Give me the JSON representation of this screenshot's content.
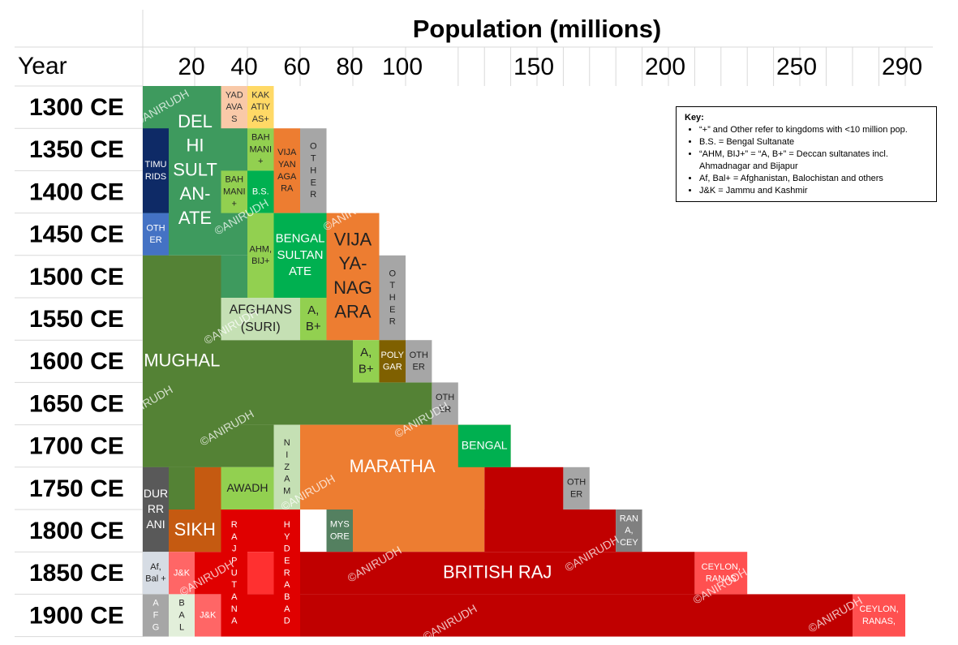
{
  "chart_data": {
    "type": "stacked-bar",
    "title": "Population (millions)",
    "ylabel": "Year",
    "x_ticks": [
      20,
      40,
      60,
      80,
      100,
      150,
      200,
      250,
      290
    ],
    "years": [
      "1300 CE",
      "1350 CE",
      "1400 CE",
      "1450 CE",
      "1500 CE",
      "1550 CE",
      "1600 CE",
      "1650 CE",
      "1700 CE",
      "1750 CE",
      "1800 CE",
      "1850 CE",
      "1900 CE"
    ],
    "blocks": [
      {
        "label": "DEL HI SULT AN- ATE",
        "start_year": "1300 CE",
        "end_year": "1450 CE",
        "from": 0,
        "to": 40,
        "color": "#3e9a5e",
        "text_color": "#ffffff",
        "font": 22,
        "bold": true,
        "lines": [
          "DEL",
          "HI",
          "SULT",
          "AN-",
          "ATE"
        ]
      },
      {
        "label": "TIMU RIDS",
        "start_year": "1350 CE",
        "end_year": "1400 CE",
        "from": 0,
        "to": 10,
        "color": "#0e2a66",
        "text_color": "#ffffff",
        "font": 11,
        "lines": [
          "TIMU",
          "RIDS"
        ]
      },
      {
        "label": "OTH ER",
        "start_year": "1450 CE",
        "end_year": "1450 CE",
        "from": 0,
        "to": 10,
        "color": "#4472c4",
        "text_color": "#ffffff",
        "font": 11,
        "lines": [
          "OTH",
          "ER"
        ]
      },
      {
        "label": "YAD AVA S",
        "start_year": "1300 CE",
        "end_year": "1300 CE",
        "from": 30,
        "to": 40,
        "color": "#f9c9a8",
        "text_color": "#333333",
        "font": 11,
        "lines": [
          "YAD",
          "AVA",
          "S"
        ]
      },
      {
        "label": "KAK ATIY AS+",
        "start_year": "1300 CE",
        "end_year": "1300 CE",
        "from": 40,
        "to": 50,
        "color": "#ffd966",
        "text_color": "#333333",
        "font": 11,
        "lines": [
          "KAK",
          "ATIY",
          "AS+"
        ]
      },
      {
        "label": "BAH MANI +",
        "start_year": "1350 CE",
        "end_year": "1350 CE",
        "from": 40,
        "to": 50,
        "color": "#92d050",
        "text_color": "#222222",
        "font": 11,
        "lines": [
          "BAH",
          "MANI",
          "+"
        ]
      },
      {
        "label": "BAH MANI +",
        "start_year": "1400 CE",
        "end_year": "1400 CE",
        "from": 30,
        "to": 40,
        "color": "#92d050",
        "text_color": "#222222",
        "font": 11,
        "lines": [
          "BAH",
          "MANI",
          "+"
        ]
      },
      {
        "label": "B.S.",
        "start_year": "1400 CE",
        "end_year": "1400 CE",
        "from": 40,
        "to": 50,
        "color": "#00b050",
        "text_color": "#ffffff",
        "font": 11,
        "lines": [
          "B.S."
        ]
      },
      {
        "label": "VIJA YAN AGA RA",
        "start_year": "1350 CE",
        "end_year": "1400 CE",
        "from": 50,
        "to": 60,
        "color": "#ed7d31",
        "text_color": "#222222",
        "font": 11,
        "bold": true,
        "lines": [
          "VIJA",
          "YAN",
          "AGA",
          "RA"
        ]
      },
      {
        "label": "O T H E R",
        "start_year": "1350 CE",
        "end_year": "1400 CE",
        "from": 60,
        "to": 70,
        "color": "#a6a6a6",
        "text_color": "#222222",
        "font": 11,
        "lines": [
          "O",
          "T",
          "H",
          "E",
          "R"
        ]
      },
      {
        "label": "AHM, BIJ+",
        "start_year": "1450 CE",
        "end_year": "1500 CE",
        "from": 40,
        "to": 50,
        "color": "#92d050",
        "text_color": "#222222",
        "font": 11,
        "lines": [
          "AHM,",
          "BIJ+"
        ]
      },
      {
        "label": "BENGAL SULTAN ATE",
        "start_year": "1450 CE",
        "end_year": "1500 CE",
        "from": 50,
        "to": 70,
        "color": "#00b050",
        "text_color": "#ffffff",
        "font": 15,
        "bold": true,
        "lines": [
          "BENGAL",
          "SULTAN",
          "ATE"
        ]
      },
      {
        "label": "VIJA YA- NAG ARA",
        "start_year": "1450 CE",
        "end_year": "1550 CE",
        "from": 70,
        "to": 90,
        "color": "#ed7d31",
        "text_color": "#222222",
        "font": 22,
        "bold": true,
        "lines": [
          "VIJA",
          "YA-",
          "NAG",
          "ARA"
        ]
      },
      {
        "label": "O T H E R",
        "start_year": "1500 CE",
        "end_year": "1550 CE",
        "from": 90,
        "to": 100,
        "color": "#a6a6a6",
        "text_color": "#222222",
        "font": 11,
        "lines": [
          "O",
          "T",
          "H",
          "E",
          "R"
        ]
      },
      {
        "label": "MUGHAL",
        "start_year": "1500 CE",
        "end_year": "1700 CE",
        "from": 0,
        "to": 30,
        "color": "#548235",
        "text_color": "#ffffff",
        "font": 22,
        "bold": true,
        "lines": [
          "MUGHAL"
        ]
      },
      {
        "label": "AFGHANS (SURI)",
        "start_year": "1550 CE",
        "end_year": "1550 CE",
        "from": 30,
        "to": 60,
        "color": "#c5e0b4",
        "text_color": "#222222",
        "font": 16,
        "lines": [
          "AFGHANS",
          "(SURI)"
        ]
      },
      {
        "label": "A, B+",
        "start_year": "1550 CE",
        "end_year": "1550 CE",
        "from": 60,
        "to": 70,
        "color": "#92d050",
        "text_color": "#222222",
        "font": 15,
        "lines": [
          "A,",
          "B+"
        ]
      },
      {
        "label": "A, B+",
        "start_year": "1600 CE",
        "end_year": "1600 CE",
        "from": 80,
        "to": 90,
        "color": "#92d050",
        "text_color": "#222222",
        "font": 15,
        "lines": [
          "A,",
          "B+"
        ]
      },
      {
        "label": "POLY GAR",
        "start_year": "1600 CE",
        "end_year": "1600 CE",
        "from": 90,
        "to": 100,
        "color": "#7f6000",
        "text_color": "#ffffff",
        "font": 11,
        "lines": [
          "POLY",
          "GAR"
        ]
      },
      {
        "label": "OTH ER",
        "start_year": "1600 CE",
        "end_year": "1600 CE",
        "from": 100,
        "to": 110,
        "color": "#a6a6a6",
        "text_color": "#222222",
        "font": 11,
        "lines": [
          "OTH",
          "ER"
        ]
      },
      {
        "label": "OTH ER",
        "start_year": "1650 CE",
        "end_year": "1650 CE",
        "from": 110,
        "to": 120,
        "color": "#a6a6a6",
        "text_color": "#222222",
        "font": 11,
        "lines": [
          "OTH",
          "ER"
        ]
      },
      {
        "label": "AWADH",
        "start_year": "1750 CE",
        "end_year": "1750 CE",
        "from": 30,
        "to": 50,
        "color": "#92d050",
        "text_color": "#222222",
        "font": 14,
        "bold": true,
        "lines": [
          "AWADH"
        ]
      },
      {
        "label": "N I Z A M",
        "start_year": "1700 CE",
        "end_year": "1750 CE",
        "from": 50,
        "to": 60,
        "color": "#c5e0b4",
        "text_color": "#222222",
        "font": 11,
        "bold": true,
        "lines": [
          "N",
          "I",
          "Z",
          "A",
          "M"
        ]
      },
      {
        "label": "MARATHA",
        "start_year": "1700 CE",
        "end_year": "1750 CE",
        "from": 60,
        "to": 130,
        "color": "#ed7d31",
        "text_color": "#ffffff",
        "font": 22,
        "bold": true,
        "lines": [
          "MARATHA"
        ]
      },
      {
        "label": "BENGAL",
        "start_year": "1700 CE",
        "end_year": "1700 CE",
        "from": 120,
        "to": 140,
        "color": "#00b050",
        "text_color": "#ffffff",
        "font": 14,
        "bold": true,
        "lines": [
          "BENGAL"
        ]
      },
      {
        "label": "DUR RR ANI",
        "start_year": "1750 CE",
        "end_year": "1800 CE",
        "from": 0,
        "to": 10,
        "color": "#595959",
        "text_color": "#ffffff",
        "font": 14,
        "lines": [
          "DUR",
          "RR",
          "ANI"
        ]
      },
      {
        "label": "SIKH",
        "start_year": "1800 CE",
        "end_year": "1800 CE",
        "from": 10,
        "to": 30,
        "color": "#c55a11",
        "text_color": "#ffffff",
        "font": 22,
        "bold": true,
        "lines": [
          "SIKH"
        ]
      },
      {
        "label": "OTH ER",
        "start_year": "1750 CE",
        "end_year": "1750 CE",
        "from": 160,
        "to": 170,
        "color": "#a6a6a6",
        "text_color": "#222222",
        "font": 11,
        "lines": [
          "OTH",
          "ER"
        ]
      },
      {
        "label": "R A J P U T A N A",
        "start_year": "1800 CE",
        "end_year": "1900 CE",
        "from": 30,
        "to": 40,
        "color": "#e00000",
        "text_color": "#ffffff",
        "font": 11,
        "bold": true,
        "lines": [
          "R",
          "A",
          "J",
          "P",
          "U",
          "T",
          "A",
          "N",
          "A"
        ]
      },
      {
        "label": "H Y D E R A B A D",
        "start_year": "1800 CE",
        "end_year": "1900 CE",
        "from": 50,
        "to": 60,
        "color": "#e00000",
        "text_color": "#ffffff",
        "font": 11,
        "bold": true,
        "lines": [
          "H",
          "Y",
          "D",
          "E",
          "R",
          "A",
          "B",
          "A",
          "D"
        ]
      },
      {
        "label": "MYS ORE",
        "start_year": "1800 CE",
        "end_year": "1800 CE",
        "from": 70,
        "to": 80,
        "color": "#548060",
        "text_color": "#ffffff",
        "font": 11,
        "lines": [
          "MYS",
          "ORE"
        ]
      },
      {
        "label": "RAN A, CEY",
        "start_year": "1800 CE",
        "end_year": "1800 CE",
        "from": 180,
        "to": 190,
        "color": "#808080",
        "text_color": "#ffffff",
        "font": 11,
        "lines": [
          "RAN",
          "A,",
          "CEY"
        ]
      },
      {
        "label": "BRITISH RAJ",
        "start_year": "1850 CE",
        "end_year": "1850 CE",
        "from": 60,
        "to": 210,
        "color": "#c00000",
        "text_color": "#ffffff",
        "font": 22,
        "bold": true,
        "lines": [
          "BRITISH RAJ"
        ]
      },
      {
        "label": "CEYLON, RANAS",
        "start_year": "1850 CE",
        "end_year": "1850 CE",
        "from": 210,
        "to": 230,
        "color": "#ff5050",
        "text_color": "#ffffff",
        "font": 11,
        "lines": [
          "CEYLON,",
          "RANAS"
        ]
      },
      {
        "label": "CEYLON, RANAS,",
        "start_year": "1900 CE",
        "end_year": "1900 CE",
        "from": 270,
        "to": 290,
        "color": "#ff5050",
        "text_color": "#ffffff",
        "font": 11,
        "lines": [
          "CEYLON,",
          "RANAS,"
        ]
      },
      {
        "label": "Af, Bal +",
        "start_year": "1850 CE",
        "end_year": "1850 CE",
        "from": 0,
        "to": 10,
        "color": "#d6dce4",
        "text_color": "#222222",
        "font": 11,
        "lines": [
          "Af,",
          "Bal +"
        ]
      },
      {
        "label": "J&K",
        "start_year": "1850 CE",
        "end_year": "1850 CE",
        "from": 10,
        "to": 20,
        "color": "#ff6666",
        "text_color": "#ffffff",
        "font": 11,
        "lines": [
          "J&K"
        ]
      },
      {
        "label": "A F G",
        "start_year": "1900 CE",
        "end_year": "1900 CE",
        "from": 0,
        "to": 10,
        "color": "#a6a6a6",
        "text_color": "#ffffff",
        "font": 11,
        "lines": [
          "A",
          "F",
          "G"
        ]
      },
      {
        "label": "B A L",
        "start_year": "1900 CE",
        "end_year": "1900 CE",
        "from": 10,
        "to": 20,
        "color": "#e2efda",
        "text_color": "#222222",
        "font": 11,
        "lines": [
          "B",
          "A",
          "L"
        ]
      },
      {
        "label": "J&K",
        "start_year": "1900 CE",
        "end_year": "1900 CE",
        "from": 20,
        "to": 30,
        "color": "#ff6666",
        "text_color": "#ffffff",
        "font": 11,
        "lines": [
          "J&K"
        ]
      }
    ],
    "fill_blocks": [
      {
        "start_year": "1500 CE",
        "end_year": "1500 CE",
        "from": 30,
        "to": 40,
        "color": "#3e9a5e"
      },
      {
        "start_year": "1550 CE",
        "end_year": "1700 CE",
        "from": 0,
        "to": 30,
        "color": "#548235"
      },
      {
        "start_year": "1600 CE",
        "end_year": "1650 CE",
        "from": 30,
        "to": 80,
        "color": "#548235"
      },
      {
        "start_year": "1650 CE",
        "end_year": "1650 CE",
        "from": 80,
        "to": 110,
        "color": "#548235"
      },
      {
        "start_year": "1700 CE",
        "end_year": "1700 CE",
        "from": 30,
        "to": 50,
        "color": "#548235"
      },
      {
        "start_year": "1700 CE",
        "end_year": "1700 CE",
        "from": 130,
        "to": 140,
        "color": "#ed7d31"
      },
      {
        "start_year": "1750 CE",
        "end_year": "1750 CE",
        "from": 10,
        "to": 20,
        "color": "#548235"
      },
      {
        "start_year": "1750 CE",
        "end_year": "1750 CE",
        "from": 20,
        "to": 30,
        "color": "#c55a11"
      },
      {
        "start_year": "1750 CE",
        "end_year": "1750 CE",
        "from": 130,
        "to": 160,
        "color": "#c00000"
      },
      {
        "start_year": "1800 CE",
        "end_year": "1800 CE",
        "from": 40,
        "to": 50,
        "color": "#e00000"
      },
      {
        "start_year": "1800 CE",
        "end_year": "1800 CE",
        "from": 80,
        "to": 130,
        "color": "#ed7d31"
      },
      {
        "start_year": "1800 CE",
        "end_year": "1800 CE",
        "from": 130,
        "to": 180,
        "color": "#c00000"
      },
      {
        "start_year": "1850 CE",
        "end_year": "1850 CE",
        "from": 20,
        "to": 30,
        "color": "#e00000"
      },
      {
        "start_year": "1850 CE",
        "end_year": "1850 CE",
        "from": 40,
        "to": 50,
        "color": "#ff3030"
      },
      {
        "start_year": "1900 CE",
        "end_year": "1900 CE",
        "from": 40,
        "to": 50,
        "color": "#e00000"
      },
      {
        "start_year": "1900 CE",
        "end_year": "1900 CE",
        "from": 60,
        "to": 270,
        "color": "#c00000"
      }
    ],
    "watermark": "©ANIRUDH"
  },
  "key": {
    "title": "Key:",
    "items": [
      "“+” and Other refer to kingdoms with <10 million pop.",
      "B.S. = Bengal Sultanate",
      "“AHM, BIJ+” = “A, B+” = Deccan sultanates incl. Ahmadnagar and Bijapur",
      "Af, Bal+ = Afghanistan, Balochistan and others",
      "J&K = Jammu and Kashmir"
    ]
  }
}
